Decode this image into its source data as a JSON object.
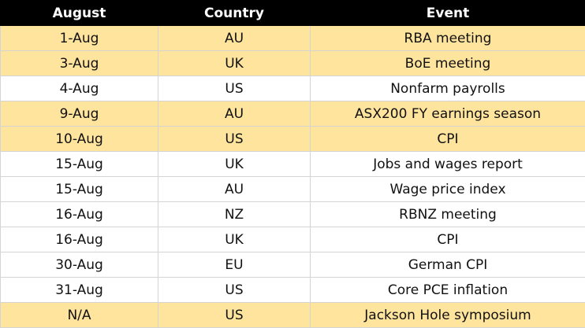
{
  "table": {
    "header": [
      "August",
      "Country",
      "Event"
    ],
    "rows": [
      [
        "1-Aug",
        "AU",
        "RBA meeting"
      ],
      [
        "3-Aug",
        "UK",
        "BoE meeting"
      ],
      [
        "4-Aug",
        "US",
        "Nonfarm payrolls"
      ],
      [
        "9-Aug",
        "AU",
        "ASX200 FY earnings season"
      ],
      [
        "10-Aug",
        "US",
        "CPI"
      ],
      [
        "15-Aug",
        "UK",
        "Jobs and wages report"
      ],
      [
        "15-Aug",
        "AU",
        "Wage price index"
      ],
      [
        "16-Aug",
        "NZ",
        "RBNZ meeting"
      ],
      [
        "16-Aug",
        "UK",
        "CPI"
      ],
      [
        "30-Aug",
        "EU",
        "German CPI"
      ],
      [
        "31-Aug",
        "US",
        "Core PCE inflation"
      ],
      [
        "N/A",
        "US",
        "Jackson Hole symposium"
      ]
    ]
  }
}
